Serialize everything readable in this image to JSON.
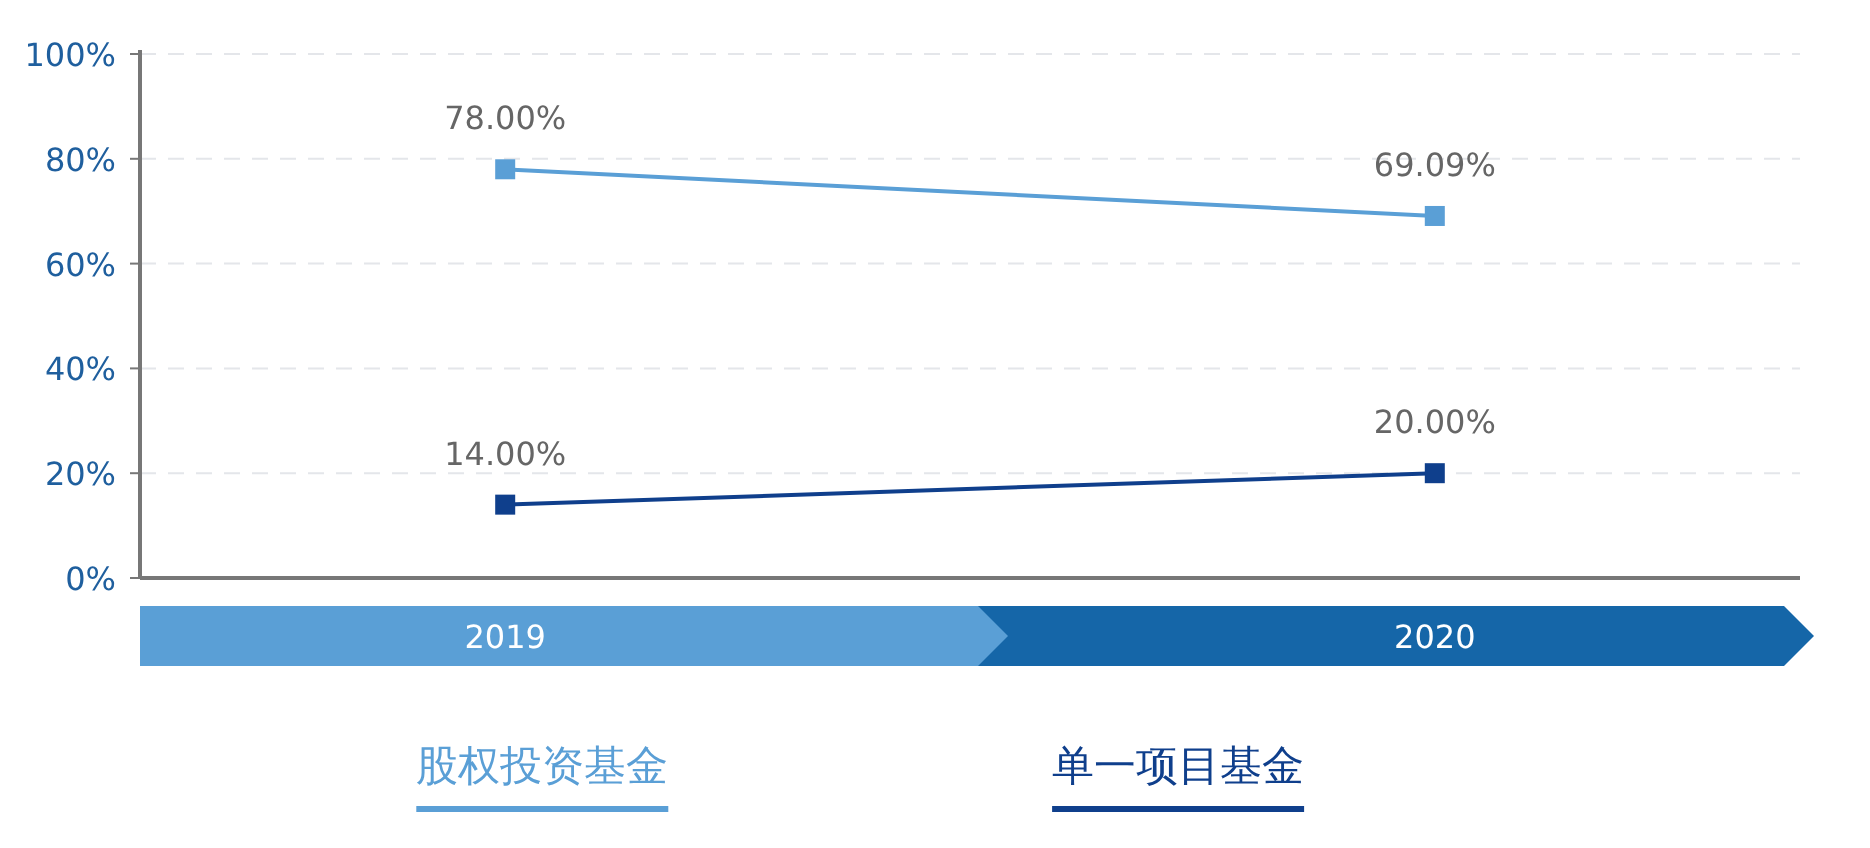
{
  "chart_data": {
    "type": "line",
    "categories": [
      "2019",
      "2020"
    ],
    "series": [
      {
        "name": "股权投资基金",
        "color": "#5a9fd6",
        "values": [
          78,
          69.09
        ],
        "value_labels": [
          "78.00%",
          "69.09%"
        ]
      },
      {
        "name": "单一项目基金",
        "color": "#0f3f8c",
        "values": [
          14,
          20
        ],
        "value_labels": [
          "14.00%",
          "20.00%"
        ]
      }
    ],
    "ylim": [
      0,
      100
    ],
    "yticks": [
      {
        "value": 0,
        "label": "0%"
      },
      {
        "value": 20,
        "label": "20%"
      },
      {
        "value": 40,
        "label": "40%"
      },
      {
        "value": 60,
        "label": "60%"
      },
      {
        "value": 80,
        "label": "80%"
      },
      {
        "value": 100,
        "label": "100%"
      }
    ],
    "grid": "y",
    "legend": "bottom",
    "marker": "square"
  }
}
